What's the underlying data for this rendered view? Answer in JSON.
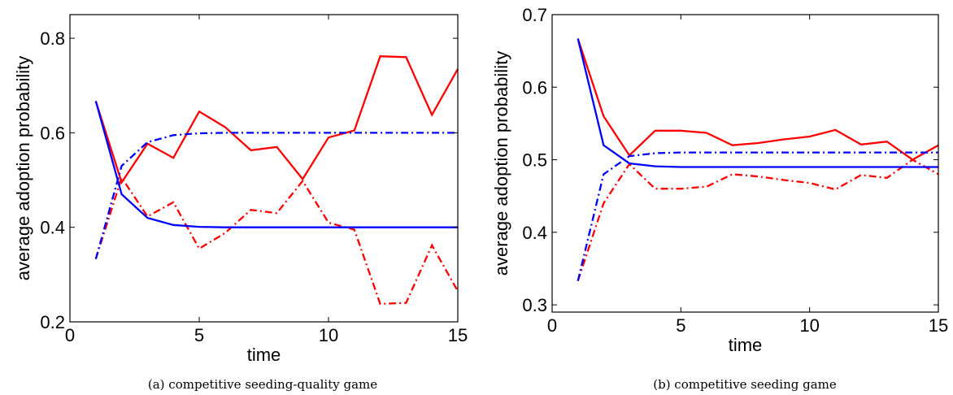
{
  "chart_data": [
    {
      "type": "line",
      "caption": "(a) competitive seeding-quality game",
      "xlabel": "time",
      "ylabel": "average adoption probability",
      "xlim": [
        0,
        15
      ],
      "ylim": [
        0.2,
        0.85
      ],
      "xticks": [
        0,
        5,
        10,
        15
      ],
      "yticks": [
        0.2,
        0.4,
        0.6,
        0.8
      ],
      "xtick_labels": [
        "0",
        "5",
        "10",
        "15"
      ],
      "ytick_labels": [
        "0.2",
        "0.4",
        "0.6",
        "0.8"
      ],
      "grid": false,
      "x": [
        1,
        2,
        3,
        4,
        5,
        6,
        7,
        8,
        9,
        10,
        11,
        12,
        13,
        14,
        15
      ],
      "series": [
        {
          "color": "#ff0000",
          "style": "solid",
          "values": [
            0.667,
            0.495,
            0.577,
            0.547,
            0.645,
            0.612,
            0.563,
            0.57,
            0.502,
            0.59,
            0.605,
            0.762,
            0.76,
            0.638,
            0.735
          ]
        },
        {
          "color": "#ff0000",
          "style": "dashdot",
          "values": [
            0.333,
            0.505,
            0.423,
            0.453,
            0.355,
            0.388,
            0.437,
            0.43,
            0.498,
            0.41,
            0.395,
            0.238,
            0.24,
            0.362,
            0.265
          ]
        },
        {
          "color": "#0000ff",
          "style": "solid",
          "values": [
            0.667,
            0.47,
            0.42,
            0.405,
            0.401,
            0.4,
            0.4,
            0.4,
            0.4,
            0.4,
            0.4,
            0.4,
            0.4,
            0.4,
            0.4
          ]
        },
        {
          "color": "#0000ff",
          "style": "dashdot",
          "values": [
            0.333,
            0.53,
            0.58,
            0.595,
            0.599,
            0.6,
            0.6,
            0.6,
            0.6,
            0.6,
            0.6,
            0.6,
            0.6,
            0.6,
            0.6
          ]
        }
      ]
    },
    {
      "type": "line",
      "caption": "(b) competitive seeding game",
      "xlabel": "time",
      "ylabel": "average adoption probability",
      "xlim": [
        0,
        15
      ],
      "ylim": [
        0.29,
        0.7
      ],
      "xticks": [
        0,
        5,
        10,
        15
      ],
      "yticks": [
        0.3,
        0.4,
        0.5,
        0.6,
        0.7
      ],
      "xtick_labels": [
        "0",
        "5",
        "10",
        "15"
      ],
      "ytick_labels": [
        "0.3",
        "0.4",
        "0.5",
        "0.6",
        "0.7"
      ],
      "grid": false,
      "x": [
        1,
        2,
        3,
        4,
        5,
        6,
        7,
        8,
        9,
        10,
        11,
        12,
        13,
        14,
        15
      ],
      "series": [
        {
          "color": "#ff0000",
          "style": "solid",
          "values": [
            0.667,
            0.56,
            0.506,
            0.54,
            0.54,
            0.537,
            0.52,
            0.523,
            0.528,
            0.532,
            0.541,
            0.521,
            0.525,
            0.5,
            0.52
          ]
        },
        {
          "color": "#ff0000",
          "style": "dashdot",
          "values": [
            0.333,
            0.44,
            0.494,
            0.46,
            0.46,
            0.463,
            0.48,
            0.477,
            0.472,
            0.468,
            0.459,
            0.479,
            0.475,
            0.5,
            0.48
          ]
        },
        {
          "color": "#0000ff",
          "style": "solid",
          "values": [
            0.667,
            0.52,
            0.495,
            0.491,
            0.49,
            0.49,
            0.49,
            0.49,
            0.49,
            0.49,
            0.49,
            0.49,
            0.49,
            0.49,
            0.49
          ]
        },
        {
          "color": "#0000ff",
          "style": "dashdot",
          "values": [
            0.333,
            0.48,
            0.505,
            0.509,
            0.51,
            0.51,
            0.51,
            0.51,
            0.51,
            0.51,
            0.51,
            0.51,
            0.51,
            0.51,
            0.51
          ]
        }
      ]
    }
  ]
}
